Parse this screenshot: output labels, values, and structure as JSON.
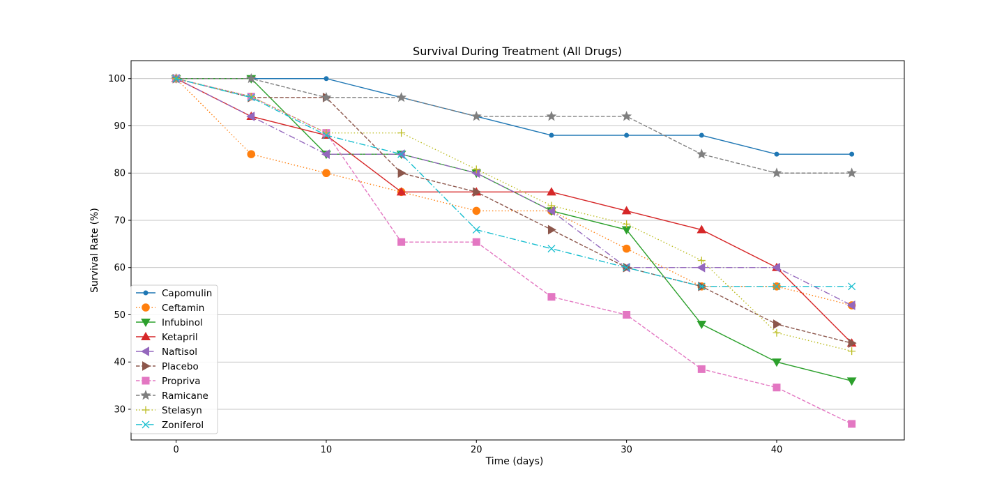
{
  "chart_data": {
    "type": "line",
    "title": "Survival During Treatment (All Drugs)",
    "xlabel": "Time (days)",
    "ylabel": "Survival Rate (%)",
    "xlim": [
      -3,
      48.5
    ],
    "ylim": [
      23.5,
      103.8
    ],
    "xticks": [
      0,
      10,
      20,
      30,
      40
    ],
    "yticks": [
      30,
      40,
      50,
      60,
      70,
      80,
      90,
      100
    ],
    "grid": "horizontal",
    "legend_position": "lower-left",
    "x": [
      0,
      5,
      10,
      15,
      20,
      25,
      30,
      35,
      40,
      45
    ],
    "series": [
      {
        "name": "Capomulin",
        "color": "#1f77b4",
        "marker": "circle-small",
        "linestyle": "solid",
        "values": [
          100,
          100,
          100,
          96,
          92,
          88,
          88,
          88,
          84,
          84
        ]
      },
      {
        "name": "Ceftamin",
        "color": "#ff7f0e",
        "marker": "circle",
        "linestyle": "dotted",
        "values": [
          100,
          84,
          80,
          76,
          72,
          72,
          64,
          56,
          56,
          52
        ]
      },
      {
        "name": "Infubinol",
        "color": "#2ca02c",
        "marker": "triangle-down",
        "linestyle": "solid",
        "values": [
          100,
          100,
          84,
          84,
          80,
          72,
          68,
          48,
          40,
          36
        ]
      },
      {
        "name": "Ketapril",
        "color": "#d62728",
        "marker": "triangle-up",
        "linestyle": "solid",
        "values": [
          100,
          92,
          88,
          76,
          76,
          76,
          72,
          68,
          60,
          44
        ]
      },
      {
        "name": "Naftisol",
        "color": "#9467bd",
        "marker": "triangle-left",
        "linestyle": "dashdot",
        "values": [
          100,
          92,
          84,
          84,
          80,
          72,
          60,
          60,
          60,
          52
        ]
      },
      {
        "name": "Placebo",
        "color": "#8c564b",
        "marker": "triangle-right",
        "linestyle": "dashed",
        "values": [
          100,
          96,
          96,
          80,
          76,
          68,
          60,
          56,
          48,
          44
        ]
      },
      {
        "name": "Propriva",
        "color": "#e377c2",
        "marker": "square",
        "linestyle": "dashed",
        "values": [
          100,
          96.2,
          88.5,
          65.4,
          65.4,
          53.8,
          50,
          38.5,
          34.6,
          26.9
        ]
      },
      {
        "name": "Ramicane",
        "color": "#7f7f7f",
        "marker": "star",
        "linestyle": "dashed",
        "values": [
          100,
          100,
          96,
          96,
          92,
          92,
          92,
          84,
          80,
          80
        ]
      },
      {
        "name": "Stelasyn",
        "color": "#bcbd22",
        "marker": "plus",
        "linestyle": "dotted",
        "values": [
          100,
          96.2,
          88.5,
          88.5,
          80.8,
          73.1,
          69.2,
          61.5,
          46.2,
          42.3
        ]
      },
      {
        "name": "Zoniferol",
        "color": "#17becf",
        "marker": "x",
        "linestyle": "dashdot",
        "values": [
          100,
          96,
          88,
          84,
          68,
          64,
          60,
          56,
          56,
          56
        ]
      }
    ]
  }
}
